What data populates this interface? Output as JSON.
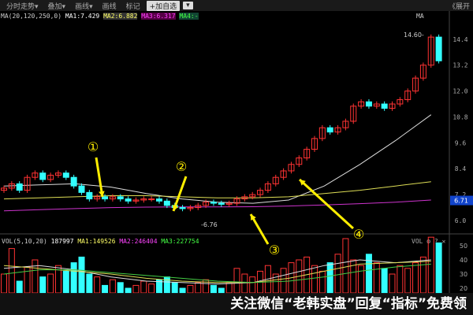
{
  "toolbar": {
    "items": [
      "分时走势▾",
      "叠加▾",
      "画线▾",
      "画线",
      "标记"
    ],
    "add_favorite": "+加自选",
    "dropdown": "▾",
    "expand": "《展开"
  },
  "legend_main": {
    "label": "MA(20,120,250,0)",
    "ma1": "MA1:7.429",
    "ma2": "MA2:6.882",
    "ma3": "MA3:6.317",
    "ma4": "MA4:-",
    "colors": {
      "ma1": "#ffffff",
      "ma2": "#ffff66",
      "ma3": "#ff44ff",
      "ma4": "#44ff44"
    }
  },
  "legend_vol": {
    "label": "VOL(5,10,20)",
    "value": "187997",
    "ma1": "MA1:149526",
    "ma2": "MA2:246404",
    "ma3": "MA3:227754",
    "tools": "VOL ⚙ ? ✕"
  },
  "ma_tag": "MA",
  "chart_data": {
    "type": "candlestick",
    "price_axis": {
      "ticks": [
        "14.4",
        "13.2",
        "12.0",
        "10.8",
        "9.6",
        "8.4",
        "7.2",
        "6.0"
      ],
      "range": [
        6.0,
        14.4
      ]
    },
    "current_price": "6.71",
    "annotations": {
      "high": "14.60",
      "low": "6.76",
      "markers": [
        "①",
        "②",
        "③",
        "④"
      ]
    },
    "close": [
      7.5,
      7.7,
      7.4,
      8.0,
      8.2,
      7.9,
      8.1,
      8.2,
      8.0,
      7.6,
      7.3,
      7.0,
      7.1,
      7.0,
      7.1,
      7.0,
      6.9,
      6.95,
      7.0,
      7.0,
      6.9,
      6.7,
      6.6,
      6.55,
      6.6,
      6.7,
      6.85,
      6.8,
      6.75,
      6.8,
      7.0,
      7.1,
      7.2,
      7.4,
      7.7,
      8.0,
      8.3,
      8.6,
      8.9,
      9.3,
      9.8,
      10.3,
      10.1,
      10.3,
      10.6,
      11.3,
      11.5,
      11.3,
      11.4,
      11.2,
      11.4,
      11.6,
      12.0,
      12.6,
      13.2,
      14.5,
      13.4
    ],
    "volume": [
      30,
      48,
      25,
      35,
      40,
      28,
      30,
      36,
      32,
      38,
      42,
      30,
      28,
      22,
      26,
      24,
      20,
      22,
      25,
      23,
      26,
      28,
      24,
      20,
      22,
      24,
      26,
      22,
      20,
      24,
      34,
      30,
      28,
      32,
      36,
      30,
      34,
      38,
      40,
      42,
      36,
      32,
      38,
      44,
      55,
      40,
      36,
      44,
      38,
      34,
      30,
      36,
      34,
      38,
      42,
      56,
      52
    ],
    "vol_axis": {
      "ticks": [
        "50",
        "40",
        "30",
        "20"
      ]
    },
    "ma_lines": {
      "ma20": [
        7.6,
        7.65,
        7.7,
        7.55,
        7.25,
        7.0,
        6.85,
        6.8,
        6.95,
        7.6,
        8.6,
        9.7,
        10.9
      ],
      "ma120": [
        7.0,
        7.05,
        7.1,
        7.15,
        7.15,
        7.1,
        7.05,
        7.05,
        7.1,
        7.25,
        7.4,
        7.6,
        7.8
      ],
      "ma250": [
        6.45,
        6.5,
        6.55,
        6.6,
        6.62,
        6.63,
        6.63,
        6.64,
        6.67,
        6.72,
        6.78,
        6.85,
        6.95
      ]
    },
    "vol_ma": {
      "ma5": [
        34,
        36,
        33,
        28,
        25,
        24,
        23,
        24,
        30,
        36,
        40,
        38,
        40
      ],
      "ma10": [
        36,
        34,
        32,
        30,
        27,
        25,
        24,
        24,
        27,
        32,
        37,
        38,
        39
      ],
      "ma20": [
        30,
        33,
        33,
        31,
        29,
        27,
        25,
        24,
        25,
        28,
        32,
        35,
        37
      ]
    }
  },
  "watermark": "关注微信“老韩实盘”回复“指标”免费领"
}
